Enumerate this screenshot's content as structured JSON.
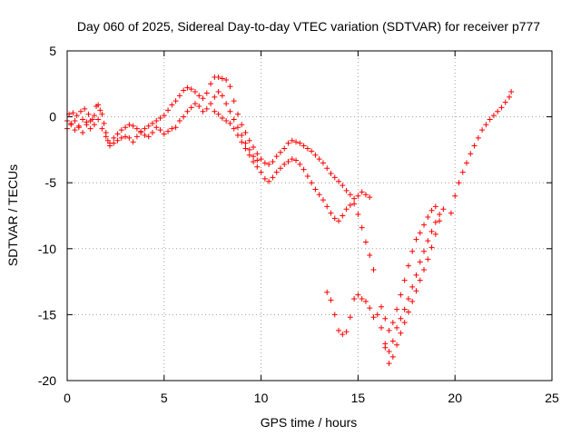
{
  "chart_data": {
    "type": "scatter",
    "title": "Day 060 of 2025, Sidereal Day-to-day VTEC variation (SDTVAR) for receiver p777",
    "xlabel": "GPS time / hours",
    "ylabel": "SDTVAR / TECUs",
    "xlim": [
      0,
      25
    ],
    "ylim": [
      -20,
      5
    ],
    "xticks": [
      0,
      5,
      10,
      15,
      20,
      25
    ],
    "yticks": [
      -20,
      -15,
      -10,
      -5,
      0,
      5
    ],
    "xtick_labels": [
      "0",
      "5",
      "10",
      "15",
      "20",
      "25"
    ],
    "ytick_labels": [
      "-20",
      "-15",
      "-10",
      "-5",
      "0",
      "5"
    ],
    "grid": true,
    "marker": "plus",
    "color": "#ff0000",
    "series": [
      {
        "points": [
          [
            0.0,
            -0.3
          ],
          [
            0.1,
            0.2
          ],
          [
            0.2,
            -0.5
          ],
          [
            0.3,
            0.3
          ],
          [
            0.4,
            -1.0
          ],
          [
            0.5,
            0.1
          ],
          [
            0.6,
            -0.7
          ],
          [
            0.7,
            0.4
          ],
          [
            0.8,
            -0.2
          ],
          [
            0.9,
            0.6
          ],
          [
            1.0,
            -0.4
          ],
          [
            1.1,
            0.2
          ],
          [
            1.2,
            -0.9
          ],
          [
            1.3,
            -0.2
          ],
          [
            1.4,
            0.1
          ],
          [
            1.5,
            0.8
          ],
          [
            1.6,
            0.9
          ],
          [
            1.7,
            0.5
          ],
          [
            1.8,
            0.2
          ],
          [
            1.9,
            -0.5
          ],
          [
            2.0,
            -1.2
          ],
          [
            2.1,
            -1.8
          ],
          [
            2.2,
            -2.0
          ],
          [
            2.4,
            -1.6
          ],
          [
            2.6,
            -1.3
          ],
          [
            2.8,
            -1.0
          ],
          [
            3.0,
            -0.8
          ],
          [
            3.2,
            -0.6
          ],
          [
            3.4,
            -0.7
          ],
          [
            3.6,
            -0.9
          ],
          [
            3.8,
            -1.1
          ],
          [
            4.0,
            -0.9
          ],
          [
            4.2,
            -0.7
          ],
          [
            4.4,
            -0.5
          ],
          [
            4.6,
            -0.3
          ],
          [
            4.8,
            -0.1
          ],
          [
            5.0,
            0.1
          ],
          [
            5.2,
            0.5
          ],
          [
            5.4,
            0.9
          ],
          [
            5.6,
            1.2
          ],
          [
            5.8,
            1.6
          ],
          [
            6.0,
            2.0
          ],
          [
            6.2,
            2.2
          ],
          [
            6.4,
            2.1
          ],
          [
            6.6,
            1.9
          ],
          [
            6.8,
            1.6
          ],
          [
            7.0,
            1.4
          ],
          [
            7.2,
            1.8
          ],
          [
            7.4,
            2.5
          ],
          [
            7.6,
            3.0
          ],
          [
            7.8,
            3.0
          ],
          [
            8.0,
            2.9
          ],
          [
            8.2,
            2.8
          ],
          [
            8.4,
            2.3
          ],
          [
            8.6,
            1.2
          ],
          [
            8.8,
            0.2
          ],
          [
            9.0,
            -0.6
          ],
          [
            9.2,
            -1.2
          ],
          [
            9.4,
            -1.8
          ],
          [
            9.6,
            -2.3
          ],
          [
            9.8,
            -2.8
          ],
          [
            10.0,
            -3.2
          ],
          [
            10.2,
            -3.5
          ],
          [
            10.4,
            -3.6
          ],
          [
            10.6,
            -3.4
          ],
          [
            10.8,
            -3.0
          ],
          [
            11.0,
            -2.7
          ],
          [
            11.2,
            -2.4
          ],
          [
            11.4,
            -2.0
          ],
          [
            11.6,
            -1.8
          ],
          [
            11.8,
            -1.9
          ],
          [
            12.0,
            -2.0
          ],
          [
            12.2,
            -2.2
          ],
          [
            12.4,
            -2.4
          ],
          [
            12.6,
            -2.6
          ],
          [
            12.8,
            -2.9
          ],
          [
            13.0,
            -3.2
          ],
          [
            13.2,
            -3.5
          ],
          [
            13.4,
            -3.9
          ],
          [
            13.6,
            -4.3
          ],
          [
            13.8,
            -4.6
          ],
          [
            14.0,
            -4.9
          ],
          [
            14.2,
            -5.2
          ],
          [
            14.4,
            -5.6
          ],
          [
            14.6,
            -5.9
          ],
          [
            14.8,
            -6.2
          ],
          [
            15.0,
            -6.0
          ],
          [
            15.2,
            -5.7
          ],
          [
            15.4,
            -5.9
          ],
          [
            15.6,
            -6.1
          ]
        ]
      },
      {
        "points": [
          [
            0.0,
            -0.9
          ],
          [
            0.2,
            -0.6
          ],
          [
            0.4,
            -0.3
          ],
          [
            0.6,
            -0.8
          ],
          [
            0.8,
            -1.2
          ],
          [
            1.0,
            -0.6
          ],
          [
            1.2,
            -0.3
          ],
          [
            1.4,
            -0.6
          ],
          [
            1.6,
            -0.2
          ],
          [
            1.8,
            -0.9
          ],
          [
            2.0,
            -1.5
          ],
          [
            2.2,
            -2.2
          ],
          [
            2.4,
            -2.0
          ],
          [
            2.6,
            -1.8
          ],
          [
            2.8,
            -1.6
          ],
          [
            3.0,
            -1.5
          ],
          [
            3.2,
            -1.6
          ],
          [
            3.4,
            -1.9
          ],
          [
            3.6,
            -1.5
          ],
          [
            3.8,
            -1.2
          ],
          [
            4.0,
            -1.4
          ],
          [
            4.2,
            -1.5
          ],
          [
            4.4,
            -1.2
          ],
          [
            4.6,
            -0.8
          ],
          [
            4.8,
            -1.0
          ],
          [
            5.0,
            -1.3
          ],
          [
            5.2,
            -1.1
          ],
          [
            5.4,
            -0.9
          ],
          [
            5.6,
            -0.8
          ],
          [
            5.8,
            -0.3
          ],
          [
            6.0,
            0.0
          ],
          [
            6.2,
            0.4
          ],
          [
            6.4,
            0.7
          ],
          [
            6.6,
            1.0
          ],
          [
            6.8,
            0.8
          ],
          [
            7.0,
            0.4
          ],
          [
            7.2,
            0.6
          ],
          [
            7.4,
            1.0
          ],
          [
            7.6,
            1.5
          ],
          [
            7.8,
            1.9
          ],
          [
            8.0,
            1.6
          ],
          [
            8.2,
            1.0
          ],
          [
            8.4,
            0.4
          ],
          [
            8.6,
            -0.2
          ],
          [
            8.8,
            -0.8
          ],
          [
            9.0,
            -1.4
          ],
          [
            9.2,
            -2.0
          ],
          [
            9.4,
            -2.5
          ],
          [
            9.6,
            -3.0
          ],
          [
            9.8,
            -3.3
          ]
        ]
      },
      {
        "points": [
          [
            7.6,
            0.4
          ],
          [
            7.8,
            0.2
          ],
          [
            8.0,
            -0.1
          ],
          [
            8.2,
            -0.3
          ],
          [
            8.4,
            -0.5
          ],
          [
            8.6,
            -0.9
          ],
          [
            8.8,
            -1.4
          ],
          [
            9.0,
            -1.9
          ],
          [
            9.2,
            -2.4
          ],
          [
            9.4,
            -2.9
          ],
          [
            9.6,
            -3.4
          ],
          [
            9.8,
            -3.8
          ],
          [
            10.0,
            -4.2
          ],
          [
            10.2,
            -4.7
          ],
          [
            10.4,
            -4.9
          ],
          [
            10.6,
            -4.6
          ],
          [
            10.8,
            -4.2
          ],
          [
            11.0,
            -3.9
          ],
          [
            11.2,
            -3.6
          ],
          [
            11.4,
            -3.4
          ],
          [
            11.6,
            -3.2
          ],
          [
            11.8,
            -3.3
          ],
          [
            12.0,
            -3.6
          ],
          [
            12.2,
            -4.0
          ],
          [
            12.4,
            -4.5
          ],
          [
            12.6,
            -5.0
          ],
          [
            12.8,
            -5.5
          ],
          [
            13.0,
            -5.9
          ],
          [
            13.2,
            -6.3
          ],
          [
            13.4,
            -6.8
          ],
          [
            13.6,
            -7.3
          ],
          [
            13.8,
            -7.7
          ],
          [
            14.0,
            -7.9
          ],
          [
            14.2,
            -7.5
          ],
          [
            14.4,
            -7.0
          ],
          [
            14.6,
            -6.7
          ],
          [
            14.8,
            -6.6
          ],
          [
            15.0,
            -7.4
          ],
          [
            15.2,
            -8.4
          ],
          [
            15.4,
            -9.5
          ],
          [
            15.6,
            -10.5
          ],
          [
            15.8,
            -11.6
          ]
        ]
      },
      {
        "points": [
          [
            13.4,
            -13.3
          ],
          [
            13.6,
            -13.9
          ],
          [
            13.8,
            -15.0
          ],
          [
            14.0,
            -16.2
          ],
          [
            14.2,
            -16.5
          ],
          [
            14.4,
            -16.3
          ],
          [
            14.6,
            -15.2
          ],
          [
            14.8,
            -13.8
          ],
          [
            15.0,
            -13.5
          ],
          [
            15.2,
            -13.8
          ],
          [
            15.4,
            -14.0
          ],
          [
            15.6,
            -14.5
          ],
          [
            15.8,
            -15.2
          ]
        ]
      },
      {
        "points": [
          [
            16.0,
            -15.0
          ],
          [
            16.2,
            -16.0
          ],
          [
            16.4,
            -17.5
          ],
          [
            16.6,
            -18.7
          ],
          [
            16.8,
            -18.2
          ],
          [
            17.0,
            -17.3
          ],
          [
            17.2,
            -16.4
          ],
          [
            17.4,
            -15.6
          ],
          [
            17.6,
            -14.8
          ],
          [
            17.8,
            -14.0
          ],
          [
            18.0,
            -13.2
          ],
          [
            18.2,
            -12.4
          ],
          [
            18.4,
            -11.6
          ],
          [
            18.6,
            -10.8
          ],
          [
            18.8,
            -9.9
          ],
          [
            19.0,
            -8.9
          ],
          [
            19.2,
            -7.9
          ],
          [
            19.4,
            -7.0
          ]
        ]
      },
      {
        "points": [
          [
            16.2,
            -14.4
          ],
          [
            16.4,
            -15.3
          ],
          [
            16.6,
            -16.2
          ],
          [
            16.8,
            -15.6
          ],
          [
            17.0,
            -14.6
          ],
          [
            17.2,
            -13.5
          ],
          [
            17.4,
            -12.4
          ],
          [
            17.6,
            -11.3
          ],
          [
            17.8,
            -10.2
          ],
          [
            18.0,
            -9.3
          ],
          [
            18.2,
            -8.8
          ],
          [
            18.4,
            -8.2
          ],
          [
            18.6,
            -7.6
          ],
          [
            18.8,
            -7.1
          ],
          [
            19.0,
            -6.8
          ]
        ]
      },
      {
        "points": [
          [
            16.4,
            -17.2
          ],
          [
            16.6,
            -17.8
          ],
          [
            16.8,
            -17.0
          ],
          [
            17.0,
            -16.0
          ],
          [
            17.2,
            -15.3
          ],
          [
            17.4,
            -14.6
          ],
          [
            17.6,
            -13.8
          ],
          [
            17.8,
            -12.9
          ],
          [
            18.0,
            -12.0
          ],
          [
            18.2,
            -11.0
          ],
          [
            18.4,
            -10.2
          ],
          [
            18.6,
            -9.4
          ],
          [
            18.8,
            -8.7
          ],
          [
            19.0,
            -8.0
          ],
          [
            19.2,
            -7.4
          ]
        ]
      },
      {
        "points": [
          [
            19.8,
            -7.3
          ],
          [
            20.0,
            -6.0
          ],
          [
            20.2,
            -5.0
          ],
          [
            20.4,
            -4.2
          ],
          [
            20.6,
            -3.5
          ],
          [
            20.8,
            -2.8
          ],
          [
            21.0,
            -2.2
          ],
          [
            21.2,
            -1.6
          ],
          [
            21.4,
            -1.0
          ],
          [
            21.6,
            -0.6
          ],
          [
            21.8,
            -0.2
          ],
          [
            22.0,
            0.1
          ],
          [
            22.2,
            0.4
          ],
          [
            22.4,
            0.7
          ],
          [
            22.6,
            1.1
          ],
          [
            22.8,
            1.5
          ],
          [
            22.9,
            1.9
          ]
        ]
      }
    ]
  }
}
